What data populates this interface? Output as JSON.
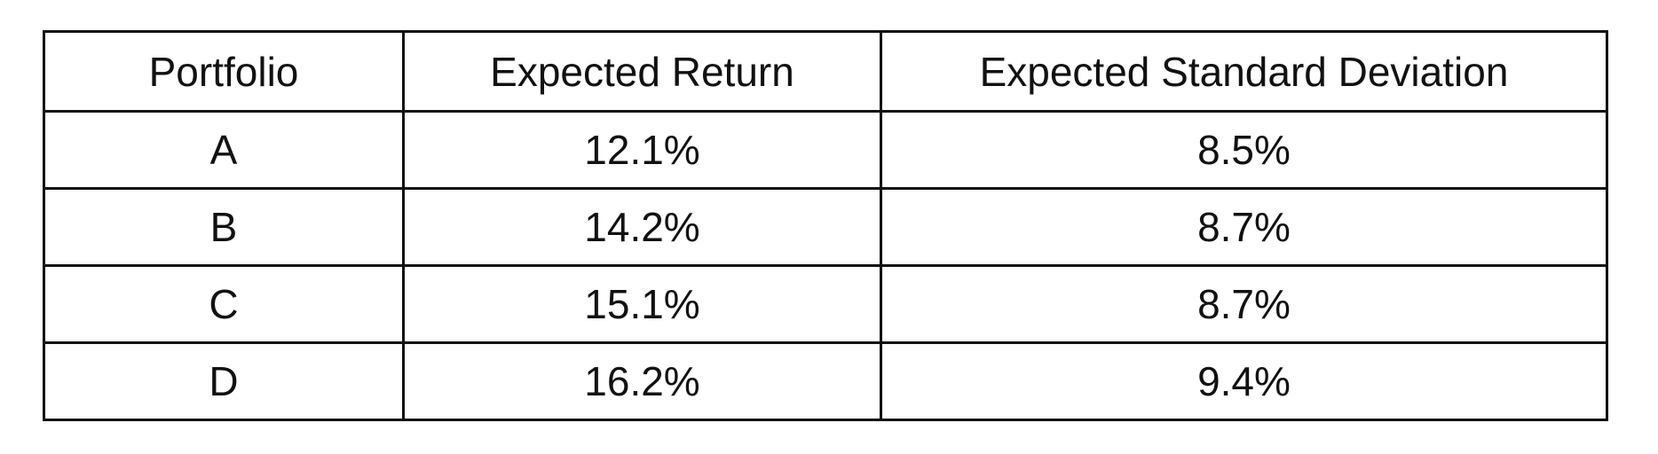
{
  "table": {
    "headers": [
      "Portfolio",
      "Expected Return",
      "Expected Standard Deviation"
    ],
    "rows": [
      [
        "A",
        "12.1%",
        "8.5%"
      ],
      [
        "B",
        "14.2%",
        "8.7%"
      ],
      [
        "C",
        "15.1%",
        "8.7%"
      ],
      [
        "D",
        "16.2%",
        "9.4%"
      ]
    ]
  }
}
